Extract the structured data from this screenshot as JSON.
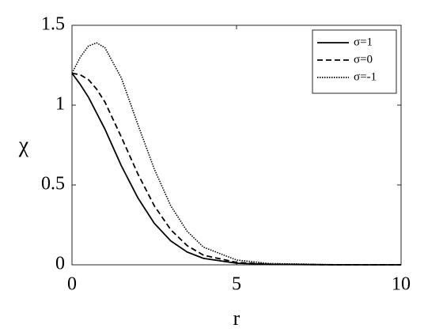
{
  "chart_data": {
    "type": "line",
    "xlabel": "r",
    "ylabel": "χ",
    "x": [
      0,
      0.25,
      0.5,
      0.75,
      1,
      1.5,
      2,
      2.5,
      3,
      3.5,
      4,
      5,
      6,
      8,
      10
    ],
    "series": [
      {
        "name": "σ=1",
        "color": "#000000",
        "dash": "solid",
        "values": [
          1.2,
          1.13,
          1.05,
          0.95,
          0.85,
          0.62,
          0.42,
          0.26,
          0.15,
          0.08,
          0.04,
          0.01,
          0.003,
          0,
          0
        ]
      },
      {
        "name": "σ=0",
        "color": "#000000",
        "dash": "dashed",
        "values": [
          1.2,
          1.19,
          1.16,
          1.1,
          1.02,
          0.8,
          0.57,
          0.37,
          0.22,
          0.12,
          0.06,
          0.015,
          0.004,
          0,
          0
        ]
      },
      {
        "name": "σ=-1",
        "color": "#000000",
        "dash": "dotted",
        "values": [
          1.2,
          1.3,
          1.37,
          1.39,
          1.36,
          1.17,
          0.88,
          0.6,
          0.37,
          0.21,
          0.11,
          0.03,
          0.008,
          0.001,
          0
        ]
      }
    ],
    "xlim": [
      0,
      10
    ],
    "xticks": [
      0,
      5,
      10
    ],
    "ylim": [
      0,
      1.5
    ],
    "yticks": [
      0,
      0.5,
      1,
      1.5
    ],
    "legend": "top-right"
  }
}
